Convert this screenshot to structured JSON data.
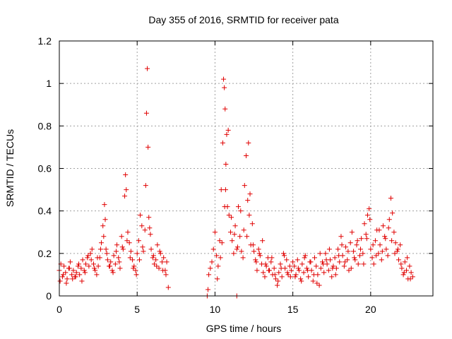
{
  "chart_data": {
    "type": "scatter",
    "title": "Day 355 of 2016, SRMTID for receiver pata",
    "xlabel": "GPS time / hours",
    "ylabel": "SRMTID / TECUs",
    "xlim": [
      0,
      24
    ],
    "ylim": [
      0,
      1.2
    ],
    "xticks": [
      0,
      5,
      10,
      15,
      20
    ],
    "xtick_labels": [
      "0",
      "5",
      "10",
      "15",
      "20"
    ],
    "yticks": [
      0,
      0.2,
      0.4,
      0.6,
      0.8,
      1.0,
      1.2
    ],
    "ytick_labels": [
      "0",
      "0.2",
      "0.4",
      "0.6",
      "0.8",
      "1",
      "1.2"
    ],
    "grid": true,
    "marker": "+",
    "series": [
      {
        "name": "SRMTID",
        "color": "#e00000",
        "x": [
          0.0,
          0.1,
          0.2,
          0.3,
          0.4,
          0.5,
          0.6,
          0.7,
          0.8,
          0.9,
          1.0,
          1.1,
          1.2,
          1.3,
          1.4,
          1.5,
          1.6,
          1.7,
          1.8,
          1.9,
          2.0,
          2.1,
          2.2,
          2.3,
          2.4,
          2.5,
          2.6,
          2.7,
          2.8,
          2.9,
          2.95,
          3.0,
          3.1,
          3.2,
          3.3,
          3.4,
          3.5,
          3.6,
          3.7,
          3.8,
          3.9,
          4.0,
          4.1,
          4.2,
          4.25,
          4.3,
          4.4,
          4.5,
          4.6,
          4.7,
          4.8,
          4.9,
          5.0,
          5.1,
          5.2,
          5.3,
          5.4,
          5.5,
          5.6,
          5.65,
          5.7,
          5.75,
          5.8,
          5.9,
          6.0,
          6.1,
          6.2,
          6.3,
          6.4,
          6.5,
          6.6,
          6.7,
          6.8,
          6.9,
          7.0,
          0.05,
          0.25,
          0.45,
          0.65,
          0.85,
          1.05,
          1.25,
          1.45,
          1.65,
          1.85,
          2.05,
          2.25,
          2.45,
          2.65,
          2.85,
          3.05,
          3.25,
          3.45,
          3.65,
          3.85,
          4.05,
          4.35,
          4.55,
          4.75,
          4.95,
          5.15,
          5.35,
          5.55,
          5.85,
          6.05,
          6.25,
          6.45,
          6.65,
          6.85,
          9.5,
          9.55,
          9.6,
          9.7,
          9.8,
          9.9,
          10.0,
          10.1,
          10.2,
          10.3,
          10.4,
          10.5,
          10.55,
          10.6,
          10.65,
          10.7,
          10.75,
          10.8,
          10.9,
          11.0,
          11.1,
          11.2,
          11.3,
          11.4,
          11.5,
          11.6,
          11.7,
          11.8,
          11.9,
          12.0,
          12.1,
          12.2,
          12.3,
          12.4,
          12.5,
          12.6,
          12.7,
          12.8,
          12.9,
          13.0,
          13.1,
          13.2,
          13.3,
          13.4,
          13.5,
          13.6,
          13.7,
          13.8,
          13.9,
          14.0,
          14.1,
          14.2,
          14.3,
          14.4,
          14.5,
          14.6,
          14.7,
          14.8,
          14.9,
          15.0,
          10.15,
          10.35,
          10.45,
          10.62,
          10.68,
          10.85,
          11.05,
          11.25,
          11.45,
          11.65,
          11.85,
          12.05,
          12.15,
          12.25,
          12.45,
          12.65,
          12.85,
          13.05,
          13.25,
          13.45,
          13.65,
          13.85,
          14.05,
          14.25,
          14.45,
          14.65,
          14.85,
          11.4,
          15.1,
          15.2,
          15.3,
          15.4,
          15.5,
          15.6,
          15.7,
          15.8,
          15.9,
          16.0,
          16.1,
          16.2,
          16.3,
          16.4,
          16.5,
          16.6,
          16.7,
          16.8,
          16.9,
          17.0,
          17.1,
          17.2,
          17.3,
          17.4,
          17.5,
          17.6,
          17.7,
          17.8,
          17.9,
          18.0,
          18.1,
          18.2,
          18.3,
          18.4,
          18.5,
          18.6,
          18.7,
          18.8,
          18.9,
          19.0,
          19.1,
          19.2,
          19.3,
          19.4,
          19.5,
          19.6,
          19.7,
          19.8,
          19.9,
          20.0,
          20.1,
          20.2,
          20.3,
          20.4,
          20.5,
          20.6,
          20.7,
          20.8,
          20.9,
          21.0,
          21.1,
          21.2,
          21.3,
          21.4,
          21.5,
          21.6,
          21.7,
          21.8,
          21.9,
          22.0,
          22.1,
          22.2,
          22.3,
          22.4,
          22.5,
          22.6,
          22.7,
          15.15,
          15.35,
          15.55,
          15.75,
          15.95,
          16.15,
          16.35,
          16.55,
          16.75,
          16.95,
          17.15,
          17.35,
          17.55,
          17.75,
          17.95,
          18.15,
          18.35,
          18.55,
          18.75,
          18.95,
          19.15,
          19.35,
          19.55,
          19.75,
          19.95,
          20.15,
          20.35,
          20.55,
          20.75,
          20.95,
          21.15,
          21.35,
          21.55,
          21.75,
          21.95,
          22.15,
          22.35,
          22.55
        ],
        "y": [
          0.12,
          0.15,
          0.09,
          0.14,
          0.11,
          0.08,
          0.13,
          0.16,
          0.1,
          0.12,
          0.09,
          0.11,
          0.14,
          0.1,
          0.13,
          0.17,
          0.12,
          0.15,
          0.18,
          0.14,
          0.2,
          0.22,
          0.15,
          0.12,
          0.1,
          0.14,
          0.18,
          0.25,
          0.33,
          0.43,
          0.36,
          0.22,
          0.17,
          0.14,
          0.16,
          0.12,
          0.19,
          0.15,
          0.24,
          0.18,
          0.13,
          0.28,
          0.22,
          0.47,
          0.57,
          0.5,
          0.3,
          0.25,
          0.21,
          0.17,
          0.14,
          0.12,
          0.2,
          0.26,
          0.38,
          0.33,
          0.21,
          0.31,
          0.86,
          1.07,
          0.7,
          0.37,
          0.32,
          0.22,
          0.18,
          0.15,
          0.17,
          0.24,
          0.13,
          0.2,
          0.16,
          0.18,
          0.12,
          0.16,
          0.04,
          0.07,
          0.1,
          0.06,
          0.13,
          0.08,
          0.09,
          0.15,
          0.07,
          0.11,
          0.19,
          0.17,
          0.13,
          0.18,
          0.22,
          0.28,
          0.2,
          0.14,
          0.11,
          0.21,
          0.16,
          0.23,
          0.26,
          0.18,
          0.13,
          0.1,
          0.17,
          0.23,
          0.52,
          0.29,
          0.19,
          0.14,
          0.21,
          0.12,
          0.1,
          0.0,
          0.03,
          0.1,
          0.13,
          0.16,
          0.22,
          0.3,
          0.19,
          0.14,
          0.26,
          0.5,
          0.72,
          1.02,
          0.98,
          0.88,
          0.62,
          0.76,
          0.42,
          0.38,
          0.3,
          0.26,
          0.2,
          0.33,
          0.22,
          0.42,
          0.28,
          0.21,
          0.18,
          0.52,
          0.66,
          0.45,
          0.38,
          0.24,
          0.34,
          0.21,
          0.17,
          0.12,
          0.22,
          0.19,
          0.15,
          0.11,
          0.09,
          0.14,
          0.18,
          0.12,
          0.16,
          0.1,
          0.13,
          0.08,
          0.05,
          0.11,
          0.15,
          0.09,
          0.2,
          0.13,
          0.17,
          0.1,
          0.14,
          0.12,
          0.16,
          0.08,
          0.18,
          0.25,
          0.42,
          0.5,
          0.78,
          0.37,
          0.29,
          0.23,
          0.4,
          0.31,
          0.28,
          0.72,
          0.48,
          0.24,
          0.16,
          0.2,
          0.26,
          0.15,
          0.12,
          0.18,
          0.1,
          0.07,
          0.13,
          0.19,
          0.11,
          0.09,
          0.0,
          0.14,
          0.1,
          0.17,
          0.12,
          0.08,
          0.15,
          0.11,
          0.19,
          0.13,
          0.09,
          0.16,
          0.12,
          0.07,
          0.18,
          0.14,
          0.1,
          0.05,
          0.13,
          0.16,
          0.11,
          0.2,
          0.15,
          0.12,
          0.17,
          0.09,
          0.14,
          0.18,
          0.13,
          0.22,
          0.16,
          0.28,
          0.19,
          0.14,
          0.23,
          0.17,
          0.12,
          0.25,
          0.3,
          0.21,
          0.17,
          0.24,
          0.15,
          0.19,
          0.27,
          0.2,
          0.34,
          0.29,
          0.38,
          0.41,
          0.22,
          0.18,
          0.15,
          0.26,
          0.31,
          0.2,
          0.24,
          0.17,
          0.33,
          0.28,
          0.22,
          0.19,
          0.36,
          0.46,
          0.39,
          0.3,
          0.25,
          0.21,
          0.17,
          0.24,
          0.13,
          0.1,
          0.16,
          0.12,
          0.08,
          0.14,
          0.11,
          0.09,
          0.09,
          0.13,
          0.07,
          0.18,
          0.12,
          0.16,
          0.1,
          0.06,
          0.2,
          0.15,
          0.17,
          0.22,
          0.13,
          0.1,
          0.19,
          0.24,
          0.16,
          0.21,
          0.13,
          0.18,
          0.26,
          0.22,
          0.15,
          0.27,
          0.36,
          0.24,
          0.19,
          0.31,
          0.21,
          0.27,
          0.32,
          0.26,
          0.2,
          0.22,
          0.15,
          0.11,
          0.18,
          0.08
        ]
      }
    ]
  }
}
